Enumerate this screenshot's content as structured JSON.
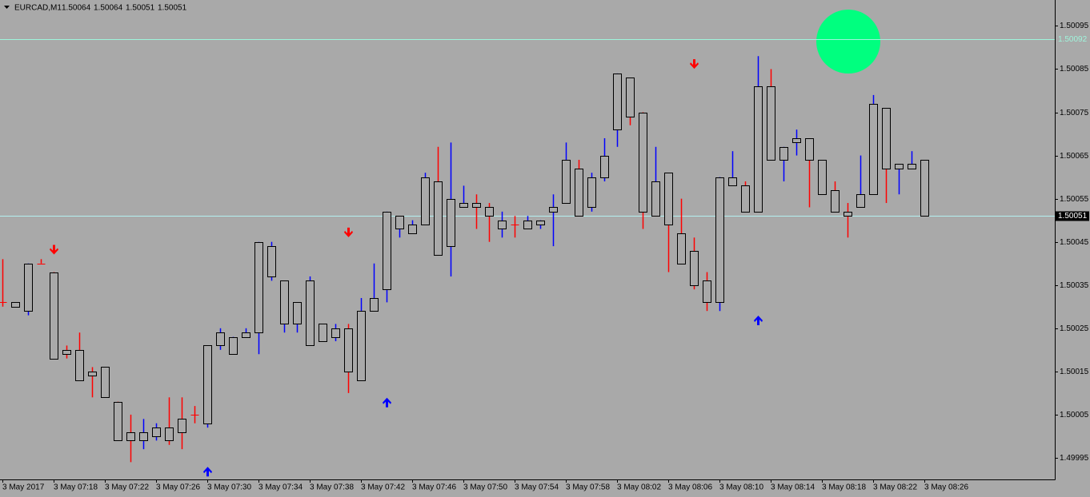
{
  "chart_data": {
    "type": "candlestick",
    "title": "EURCAD,M1",
    "categories": [
      "3 May 2017",
      null,
      null,
      null,
      "3 May 07:18",
      null,
      null,
      null,
      "3 May 07:22",
      null,
      null,
      null,
      "3 May 07:26",
      null,
      null,
      null,
      "3 May 07:30",
      null,
      null,
      null,
      "3 May 07:34",
      null,
      null,
      null,
      "3 May 07:38",
      null,
      null,
      null,
      "3 May 07:42",
      null,
      null,
      null,
      "3 May 07:46",
      null,
      null,
      null,
      "3 May 07:50",
      null,
      null,
      null,
      "3 May 07:54",
      null,
      null,
      null,
      "3 May 07:58",
      null,
      null,
      null,
      "3 May 08:02",
      null,
      null,
      null,
      "3 May 08:06",
      null,
      null,
      null,
      "3 May 08:10",
      null,
      null,
      null,
      "3 May 08:14",
      null,
      null,
      null,
      "3 May 08:18",
      null,
      null,
      null,
      "3 May 08:22",
      null,
      null,
      null,
      "3 May 08:26"
    ],
    "open": [
      1.50031,
      1.5003,
      1.50029,
      1.5004,
      1.50038,
      1.5002,
      1.5002,
      1.50015,
      1.50016,
      1.50008,
      1.50001,
      1.49999,
      1.5,
      1.50002,
      1.50004,
      1.50005,
      1.50003,
      1.50021,
      1.50019,
      1.50023,
      1.50024,
      1.50037,
      1.50026,
      1.50026,
      1.50021,
      1.50022,
      1.50023,
      1.50025,
      1.50013,
      1.50029,
      1.50034,
      1.50048,
      1.50047,
      1.50049,
      1.50059,
      1.50044,
      1.50053,
      1.50054,
      1.50053,
      1.50048,
      1.50049,
      1.50048,
      1.50049,
      1.50052,
      1.50054,
      1.50062,
      1.50053,
      1.5006,
      1.50071,
      1.50083,
      1.50075,
      1.50051,
      1.50061,
      1.50047,
      1.50043,
      1.50036,
      1.50031,
      1.50058,
      1.50058,
      1.50052,
      1.50081,
      1.50064,
      1.50068,
      1.50069,
      1.50064,
      1.50057,
      1.50052,
      1.50053,
      1.50056,
      1.50076,
      1.50062,
      1.50062,
      1.50064
    ],
    "high": [
      1.50041,
      1.50031,
      1.5004,
      1.50041,
      1.50038,
      1.50021,
      1.50024,
      1.50016,
      1.50016,
      1.50008,
      1.50005,
      1.50004,
      1.50003,
      1.50009,
      1.50009,
      1.50007,
      1.50021,
      1.50025,
      1.50023,
      1.50025,
      1.50045,
      1.50045,
      1.50036,
      1.50031,
      1.50037,
      1.50026,
      1.50026,
      1.50026,
      1.50032,
      1.5004,
      1.50052,
      1.50051,
      1.5005,
      1.50061,
      1.50067,
      1.50068,
      1.50058,
      1.50056,
      1.50054,
      1.50052,
      1.50051,
      1.50051,
      1.5005,
      1.50056,
      1.50068,
      1.50064,
      1.50061,
      1.50069,
      1.50084,
      1.50083,
      1.50075,
      1.50067,
      1.50061,
      1.50055,
      1.50046,
      1.50038,
      1.5006,
      1.50066,
      1.50059,
      1.50088,
      1.50085,
      1.50067,
      1.50071,
      1.50069,
      1.50064,
      1.50059,
      1.50054,
      1.50065,
      1.50079,
      1.50076,
      1.50063,
      1.50066,
      1.50064
    ],
    "low": [
      1.5003,
      1.5003,
      1.50028,
      1.5004,
      1.50018,
      1.50018,
      1.50013,
      1.50009,
      1.50009,
      1.49999,
      1.49994,
      1.49997,
      1.49999,
      1.49998,
      1.49997,
      1.50003,
      1.50002,
      1.5002,
      1.50019,
      1.50023,
      1.50019,
      1.50036,
      1.50024,
      1.50024,
      1.50021,
      1.50022,
      1.50022,
      1.5001,
      1.50013,
      1.50029,
      1.50031,
      1.50046,
      1.50047,
      1.50049,
      1.50042,
      1.50037,
      1.50053,
      1.50048,
      1.50045,
      1.50046,
      1.50046,
      1.50048,
      1.50048,
      1.50044,
      1.50054,
      1.50051,
      1.50052,
      1.50059,
      1.50067,
      1.50072,
      1.50048,
      1.50051,
      1.50038,
      1.5004,
      1.50034,
      1.50029,
      1.50029,
      1.50058,
      1.50052,
      1.50052,
      1.50064,
      1.50059,
      1.50065,
      1.50053,
      1.50056,
      1.50052,
      1.50046,
      1.50053,
      1.50056,
      1.50054,
      1.50056,
      1.50062,
      1.50051
    ],
    "close": [
      1.50031,
      1.50031,
      1.5004,
      1.5004,
      1.50018,
      1.50019,
      1.50013,
      1.50014,
      1.50009,
      1.49999,
      1.49999,
      1.50001,
      1.50002,
      1.49999,
      1.50001,
      1.50005,
      1.50021,
      1.50024,
      1.50023,
      1.50024,
      1.50045,
      1.50044,
      1.50036,
      1.50031,
      1.50036,
      1.50026,
      1.50025,
      1.50015,
      1.50029,
      1.50032,
      1.50052,
      1.50051,
      1.50049,
      1.5006,
      1.50042,
      1.50055,
      1.50054,
      1.50053,
      1.50051,
      1.5005,
      1.50049,
      1.5005,
      1.5005,
      1.50053,
      1.50064,
      1.50051,
      1.5006,
      1.50065,
      1.50084,
      1.50074,
      1.50052,
      1.50059,
      1.50049,
      1.5004,
      1.50035,
      1.50031,
      1.5006,
      1.5006,
      1.50052,
      1.50081,
      1.50064,
      1.50067,
      1.50069,
      1.50064,
      1.50056,
      1.50052,
      1.50051,
      1.50056,
      1.50077,
      1.50062,
      1.50063,
      1.50063,
      1.50051
    ],
    "up_color": "#0000ff",
    "down_color": "#ff0000",
    "ylim": [
      1.4999,
      1.50101
    ],
    "yticks": [
      1.49995,
      1.50005,
      1.50015,
      1.50025,
      1.50035,
      1.50045,
      1.50055,
      1.50065,
      1.50075,
      1.50085,
      1.50095
    ],
    "price_lines": [
      {
        "value": 1.50092,
        "color": "#9ff5dc"
      },
      {
        "value": 1.50051,
        "color": "#b4f0f0",
        "label_background": "#000000"
      }
    ],
    "signals": [
      {
        "index": 4,
        "price": 1.50043,
        "direction": "down",
        "color": "#ff0000"
      },
      {
        "index": 27,
        "price": 1.50047,
        "direction": "down",
        "color": "#ff0000"
      },
      {
        "index": 54,
        "price": 1.50086,
        "direction": "down",
        "color": "#ff0000"
      },
      {
        "index": 16,
        "price": 1.49992,
        "direction": "up",
        "color": "#0000ff"
      },
      {
        "index": 30,
        "price": 1.50008,
        "direction": "up",
        "color": "#0000ff"
      },
      {
        "index": 59,
        "price": 1.50027,
        "direction": "up",
        "color": "#0000ff"
      }
    ]
  }
}
